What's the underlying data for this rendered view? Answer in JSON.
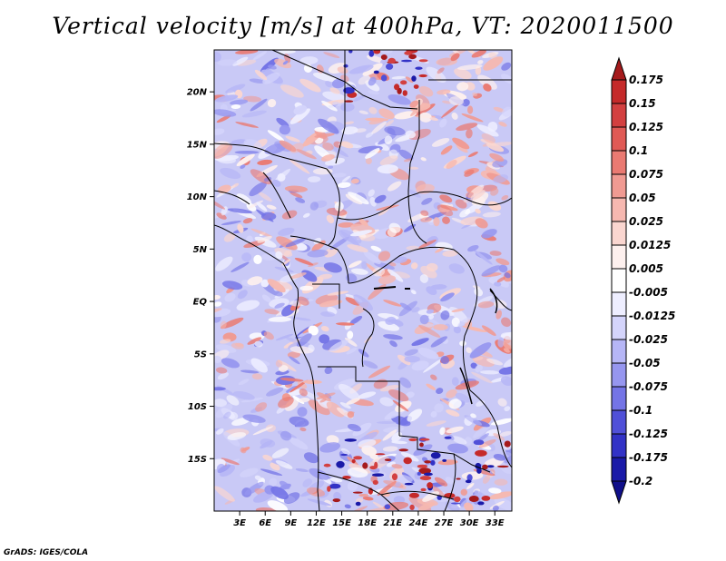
{
  "title": "Vertical velocity [m/s] at 400hPa, VT: 2020011500",
  "credit": "GrADS: IGES/COLA",
  "map": {
    "field": "Vertical velocity",
    "units": "m/s",
    "level": "400hPa",
    "valid_time": "2020011500",
    "lon_range": [
      0,
      35
    ],
    "lat_range": [
      -20,
      24
    ],
    "lat_ticks": [
      {
        "value": 20,
        "label": "20N"
      },
      {
        "value": 15,
        "label": "15N"
      },
      {
        "value": 10,
        "label": "10N"
      },
      {
        "value": 5,
        "label": "5N"
      },
      {
        "value": 0,
        "label": "EQ"
      },
      {
        "value": -5,
        "label": "5S"
      },
      {
        "value": -10,
        "label": "10S"
      },
      {
        "value": -15,
        "label": "15S"
      }
    ],
    "lon_ticks": [
      {
        "value": 3,
        "label": "3E"
      },
      {
        "value": 6,
        "label": "6E"
      },
      {
        "value": 9,
        "label": "9E"
      },
      {
        "value": 12,
        "label": "12E"
      },
      {
        "value": 15,
        "label": "15E"
      },
      {
        "value": 18,
        "label": "18E"
      },
      {
        "value": 21,
        "label": "21E"
      },
      {
        "value": 24,
        "label": "24E"
      },
      {
        "value": 27,
        "label": "27E"
      },
      {
        "value": 30,
        "label": "30E"
      },
      {
        "value": 33,
        "label": "33E"
      }
    ]
  },
  "colorbar": {
    "levels": [
      "0.175",
      "0.15",
      "0.125",
      "0.1",
      "0.075",
      "0.05",
      "0.025",
      "0.0125",
      "0.005",
      "-0.005",
      "-0.0125",
      "-0.025",
      "-0.05",
      "-0.075",
      "-0.1",
      "-0.125",
      "-0.175",
      "-0.2"
    ],
    "colors": [
      "#a51a1c",
      "#c52a2a",
      "#d34040",
      "#e05a55",
      "#ea7a72",
      "#f09a92",
      "#f6b8b0",
      "#fad6d0",
      "#fdf0ee",
      "#ffffff",
      "#eeeeff",
      "#d4d4fb",
      "#b6b6f6",
      "#9696ef",
      "#7474e6",
      "#5050d8",
      "#3232c6",
      "#1a1aa8",
      "#100f8a"
    ]
  }
}
